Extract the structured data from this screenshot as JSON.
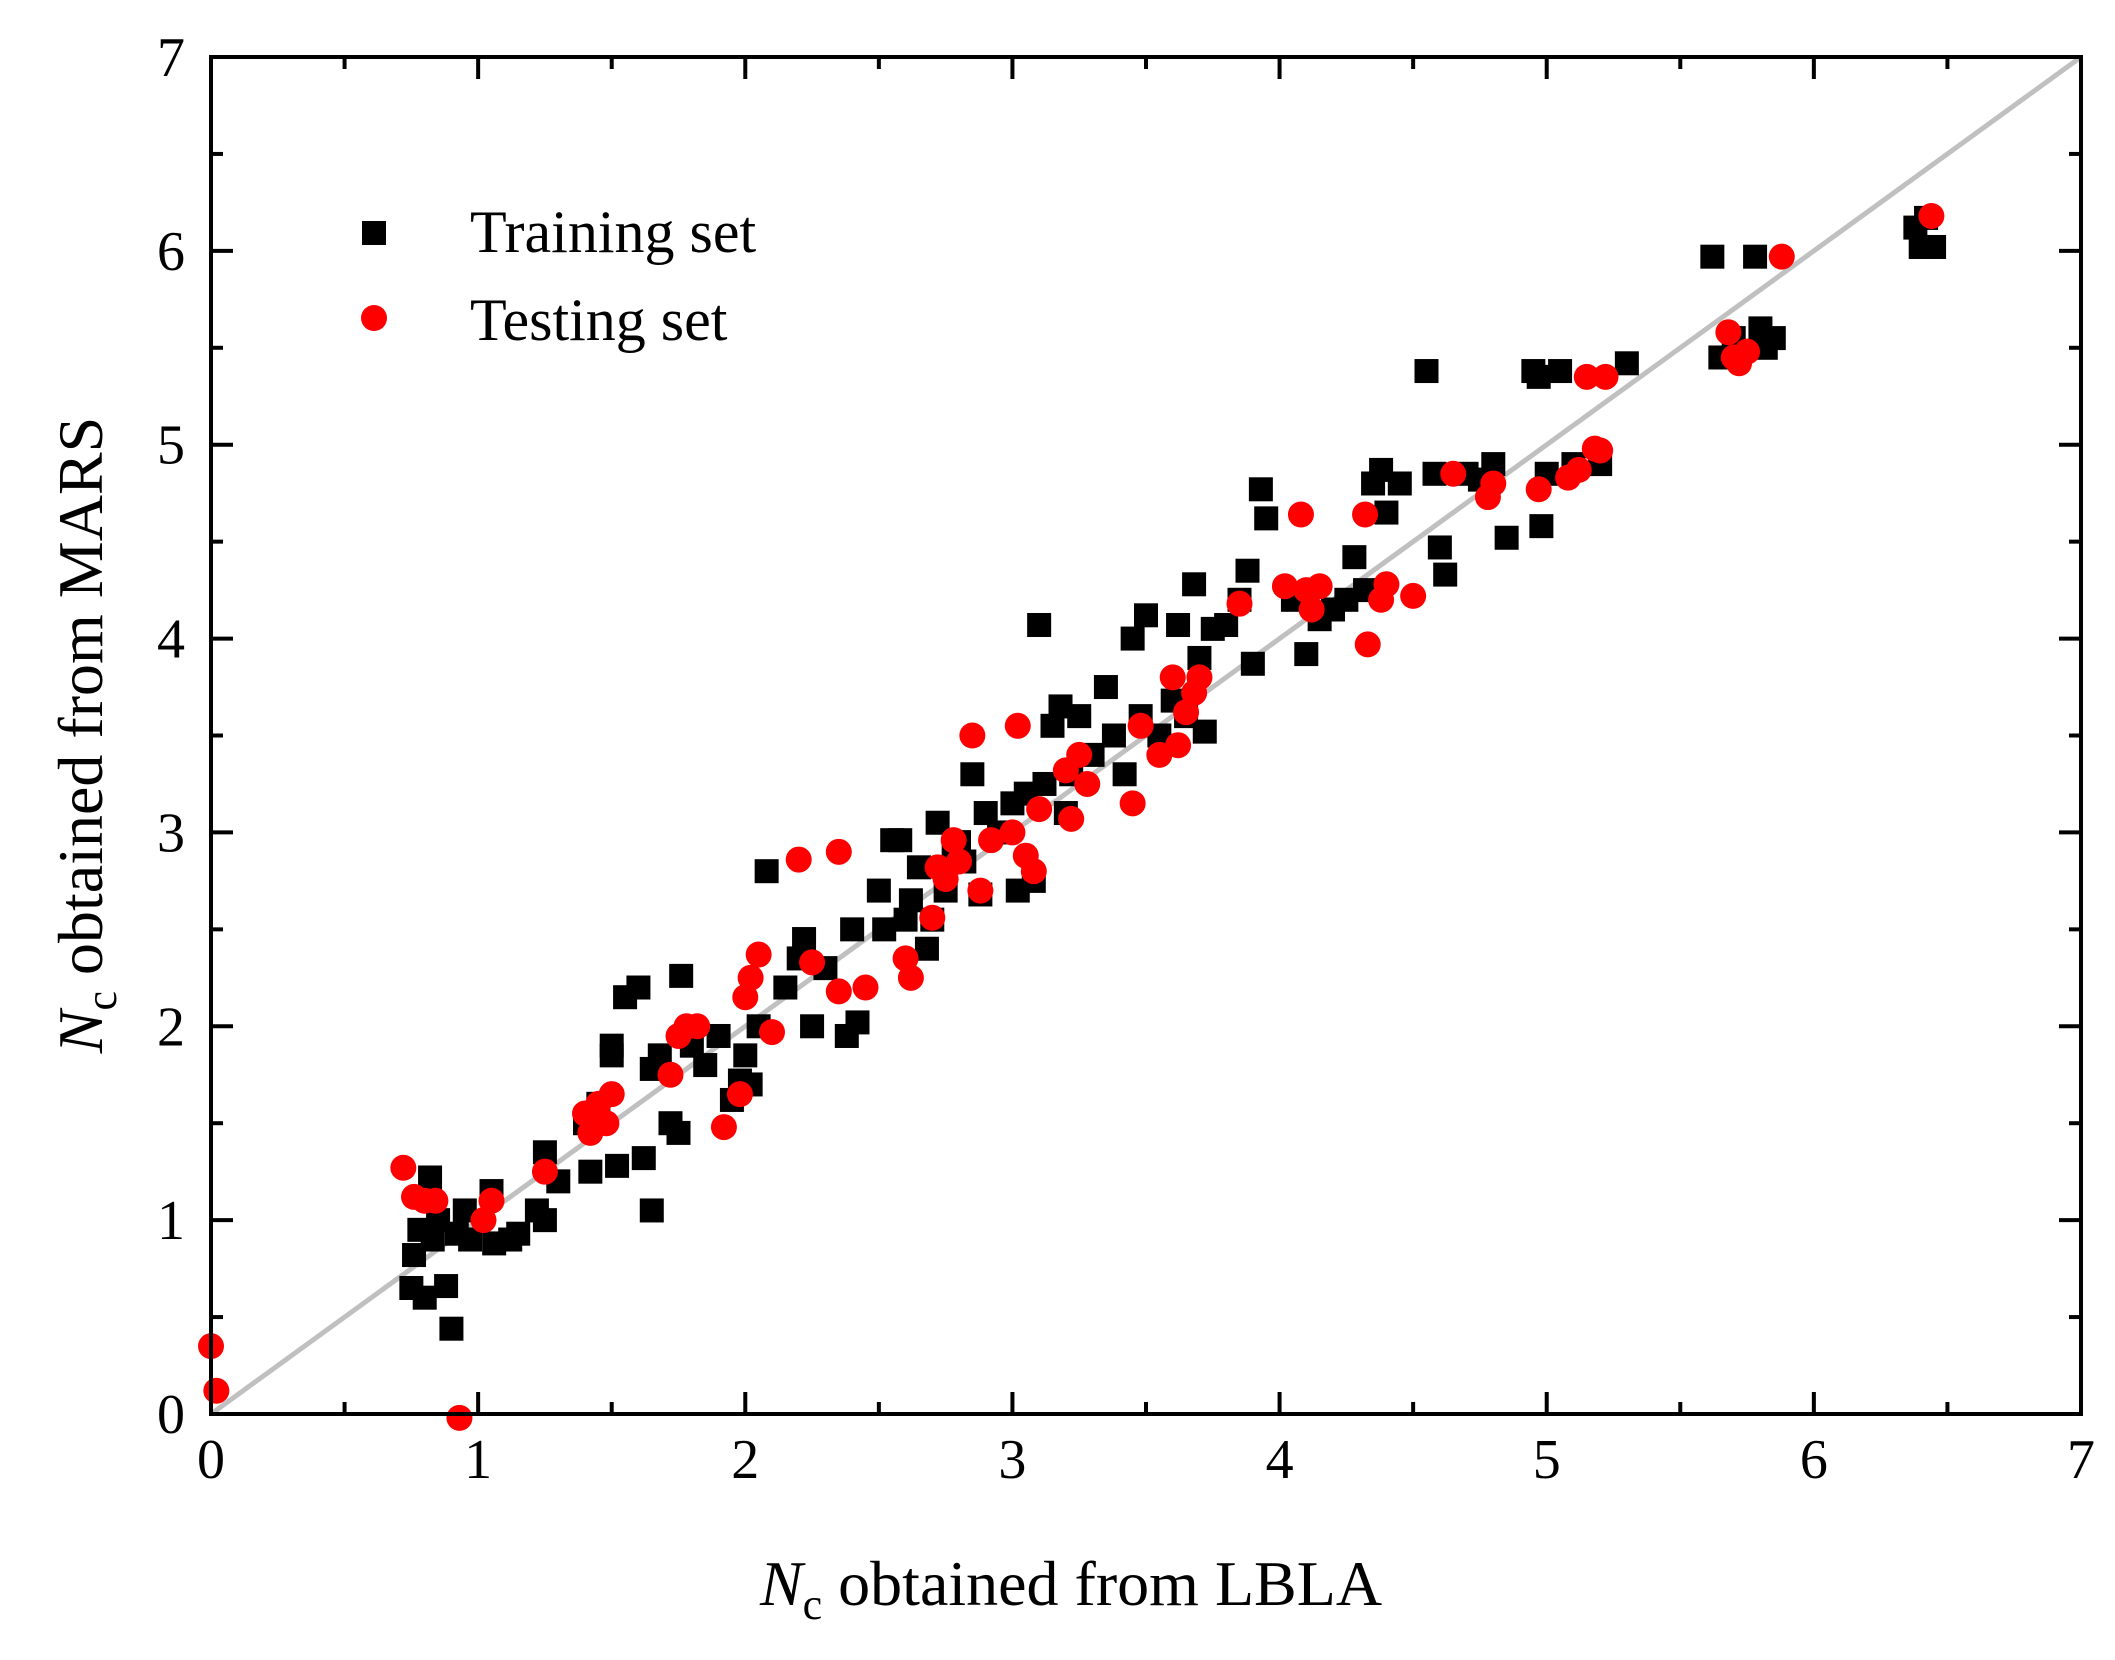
{
  "chart_data": {
    "type": "scatter",
    "xlabel": {
      "symbol": "N",
      "subscript": "c",
      "text": " obtained from LBLA"
    },
    "ylabel": {
      "symbol": "N",
      "subscript": "c",
      "text": " obtained from MARS"
    },
    "xlim": [
      0,
      7
    ],
    "ylim": [
      0,
      7
    ],
    "xticks": [
      0,
      1,
      2,
      3,
      4,
      5,
      6,
      7
    ],
    "yticks": [
      0,
      1,
      2,
      3,
      4,
      5,
      6,
      7
    ],
    "grid": false,
    "legend_position": "top-left",
    "reference_line": {
      "from": [
        0,
        0
      ],
      "to": [
        7,
        7
      ],
      "color": "#c0c0c0"
    },
    "colors": {
      "training": "#000000",
      "testing": "#ff0000",
      "reference": "#c0c0c0"
    },
    "series": [
      {
        "name": "Training set",
        "marker": "square",
        "color": "#000000",
        "points": [
          [
            0.75,
            0.65
          ],
          [
            0.76,
            0.82
          ],
          [
            0.78,
            0.95
          ],
          [
            0.8,
            0.6
          ],
          [
            0.82,
            1.22
          ],
          [
            0.83,
            0.9
          ],
          [
            0.85,
            1.0
          ],
          [
            0.88,
            0.66
          ],
          [
            0.9,
            0.44
          ],
          [
            0.92,
            0.93
          ],
          [
            0.95,
            1.05
          ],
          [
            0.97,
            0.9
          ],
          [
            1.05,
            1.15
          ],
          [
            1.06,
            0.88
          ],
          [
            1.12,
            0.9
          ],
          [
            1.15,
            0.93
          ],
          [
            1.22,
            1.05
          ],
          [
            1.25,
            1.0
          ],
          [
            1.25,
            1.35
          ],
          [
            1.3,
            1.2
          ],
          [
            1.4,
            1.5
          ],
          [
            1.42,
            1.25
          ],
          [
            1.45,
            1.6
          ],
          [
            1.5,
            1.85
          ],
          [
            1.5,
            1.9
          ],
          [
            1.52,
            1.28
          ],
          [
            1.55,
            2.15
          ],
          [
            1.6,
            2.2
          ],
          [
            1.62,
            1.32
          ],
          [
            1.65,
            1.78
          ],
          [
            1.65,
            1.05
          ],
          [
            1.68,
            1.85
          ],
          [
            1.72,
            1.5
          ],
          [
            1.75,
            1.45
          ],
          [
            1.76,
            2.26
          ],
          [
            1.8,
            1.9
          ],
          [
            1.85,
            1.8
          ],
          [
            1.9,
            1.95
          ],
          [
            1.95,
            1.62
          ],
          [
            1.98,
            1.72
          ],
          [
            2.0,
            1.85
          ],
          [
            2.02,
            1.7
          ],
          [
            2.05,
            2.0
          ],
          [
            2.08,
            2.8
          ],
          [
            2.15,
            2.2
          ],
          [
            2.2,
            2.35
          ],
          [
            2.22,
            2.45
          ],
          [
            2.25,
            2.0
          ],
          [
            2.3,
            2.3
          ],
          [
            2.38,
            1.95
          ],
          [
            2.4,
            2.5
          ],
          [
            2.42,
            2.02
          ],
          [
            2.5,
            2.7
          ],
          [
            2.52,
            2.5
          ],
          [
            2.55,
            2.96
          ],
          [
            2.58,
            2.96
          ],
          [
            2.6,
            2.55
          ],
          [
            2.62,
            2.65
          ],
          [
            2.65,
            2.82
          ],
          [
            2.68,
            2.4
          ],
          [
            2.7,
            2.55
          ],
          [
            2.72,
            3.05
          ],
          [
            2.75,
            2.7
          ],
          [
            2.78,
            2.9
          ],
          [
            2.8,
            2.95
          ],
          [
            2.82,
            2.85
          ],
          [
            2.85,
            3.3
          ],
          [
            2.88,
            2.68
          ],
          [
            2.9,
            3.1
          ],
          [
            2.95,
            3.0
          ],
          [
            3.0,
            3.15
          ],
          [
            3.02,
            2.7
          ],
          [
            3.05,
            3.2
          ],
          [
            3.08,
            2.75
          ],
          [
            3.1,
            4.07
          ],
          [
            3.12,
            3.25
          ],
          [
            3.15,
            3.55
          ],
          [
            3.18,
            3.65
          ],
          [
            3.2,
            3.1
          ],
          [
            3.22,
            3.3
          ],
          [
            3.25,
            3.6
          ],
          [
            3.3,
            3.4
          ],
          [
            3.35,
            3.75
          ],
          [
            3.38,
            3.5
          ],
          [
            3.42,
            3.3
          ],
          [
            3.45,
            4.0
          ],
          [
            3.48,
            3.6
          ],
          [
            3.5,
            4.12
          ],
          [
            3.55,
            3.5
          ],
          [
            3.6,
            3.68
          ],
          [
            3.62,
            4.07
          ],
          [
            3.65,
            3.6
          ],
          [
            3.68,
            4.28
          ],
          [
            3.7,
            3.9
          ],
          [
            3.72,
            3.52
          ],
          [
            3.75,
            4.05
          ],
          [
            3.8,
            4.07
          ],
          [
            3.85,
            4.2
          ],
          [
            3.88,
            4.35
          ],
          [
            3.9,
            3.87
          ],
          [
            3.93,
            4.77
          ],
          [
            3.95,
            4.62
          ],
          [
            4.05,
            4.2
          ],
          [
            4.1,
            3.92
          ],
          [
            4.15,
            4.1
          ],
          [
            4.2,
            4.15
          ],
          [
            4.25,
            4.2
          ],
          [
            4.28,
            4.42
          ],
          [
            4.32,
            4.25
          ],
          [
            4.35,
            4.8
          ],
          [
            4.38,
            4.87
          ],
          [
            4.4,
            4.65
          ],
          [
            4.45,
            4.8
          ],
          [
            4.55,
            5.38
          ],
          [
            4.58,
            4.85
          ],
          [
            4.6,
            4.47
          ],
          [
            4.62,
            4.33
          ],
          [
            4.7,
            4.85
          ],
          [
            4.75,
            4.82
          ],
          [
            4.8,
            4.9
          ],
          [
            4.85,
            4.52
          ],
          [
            4.95,
            5.38
          ],
          [
            4.97,
            5.35
          ],
          [
            4.98,
            4.58
          ],
          [
            5.0,
            4.85
          ],
          [
            5.05,
            5.38
          ],
          [
            5.1,
            4.9
          ],
          [
            5.2,
            4.9
          ],
          [
            5.3,
            5.42
          ],
          [
            5.62,
            5.97
          ],
          [
            5.65,
            5.45
          ],
          [
            5.7,
            5.55
          ],
          [
            5.78,
            5.97
          ],
          [
            5.8,
            5.6
          ],
          [
            5.82,
            5.5
          ],
          [
            5.85,
            5.55
          ],
          [
            6.38,
            6.12
          ],
          [
            6.4,
            6.02
          ],
          [
            6.42,
            6.17
          ],
          [
            6.45,
            6.02
          ]
        ]
      },
      {
        "name": "Testing set",
        "marker": "circle",
        "color": "#ff0000",
        "points": [
          [
            0.0,
            0.35
          ],
          [
            0.02,
            0.12
          ],
          [
            0.72,
            1.27
          ],
          [
            0.76,
            1.12
          ],
          [
            0.8,
            1.1
          ],
          [
            0.84,
            1.1
          ],
          [
            0.93,
            -0.02
          ],
          [
            1.02,
            1.0
          ],
          [
            1.05,
            1.1
          ],
          [
            1.25,
            1.25
          ],
          [
            1.4,
            1.55
          ],
          [
            1.42,
            1.45
          ],
          [
            1.45,
            1.6
          ],
          [
            1.48,
            1.5
          ],
          [
            1.5,
            1.65
          ],
          [
            1.72,
            1.75
          ],
          [
            1.75,
            1.95
          ],
          [
            1.78,
            2.0
          ],
          [
            1.82,
            2.0
          ],
          [
            1.92,
            1.48
          ],
          [
            1.98,
            1.65
          ],
          [
            2.0,
            2.15
          ],
          [
            2.02,
            2.25
          ],
          [
            2.05,
            2.37
          ],
          [
            2.1,
            1.97
          ],
          [
            2.2,
            2.86
          ],
          [
            2.25,
            2.33
          ],
          [
            2.35,
            2.9
          ],
          [
            2.35,
            2.18
          ],
          [
            2.45,
            2.2
          ],
          [
            2.6,
            2.35
          ],
          [
            2.62,
            2.25
          ],
          [
            2.7,
            2.56
          ],
          [
            2.72,
            2.82
          ],
          [
            2.75,
            2.76
          ],
          [
            2.78,
            2.96
          ],
          [
            2.8,
            2.85
          ],
          [
            2.85,
            3.5
          ],
          [
            2.88,
            2.7
          ],
          [
            2.92,
            2.96
          ],
          [
            3.0,
            3.0
          ],
          [
            3.02,
            3.55
          ],
          [
            3.05,
            2.88
          ],
          [
            3.08,
            2.8
          ],
          [
            3.1,
            3.12
          ],
          [
            3.2,
            3.32
          ],
          [
            3.22,
            3.07
          ],
          [
            3.25,
            3.4
          ],
          [
            3.28,
            3.25
          ],
          [
            3.45,
            3.15
          ],
          [
            3.48,
            3.55
          ],
          [
            3.55,
            3.4
          ],
          [
            3.6,
            3.8
          ],
          [
            3.62,
            3.45
          ],
          [
            3.65,
            3.62
          ],
          [
            3.68,
            3.72
          ],
          [
            3.7,
            3.8
          ],
          [
            3.85,
            4.18
          ],
          [
            4.02,
            4.27
          ],
          [
            4.08,
            4.64
          ],
          [
            4.1,
            4.25
          ],
          [
            4.12,
            4.15
          ],
          [
            4.15,
            4.27
          ],
          [
            4.32,
            4.64
          ],
          [
            4.33,
            3.97
          ],
          [
            4.38,
            4.2
          ],
          [
            4.4,
            4.28
          ],
          [
            4.5,
            4.22
          ],
          [
            4.65,
            4.85
          ],
          [
            4.78,
            4.73
          ],
          [
            4.8,
            4.8
          ],
          [
            4.97,
            4.77
          ],
          [
            5.08,
            4.83
          ],
          [
            5.12,
            4.87
          ],
          [
            5.15,
            5.35
          ],
          [
            5.18,
            4.98
          ],
          [
            5.2,
            4.97
          ],
          [
            5.22,
            5.35
          ],
          [
            5.68,
            5.58
          ],
          [
            5.7,
            5.45
          ],
          [
            5.72,
            5.42
          ],
          [
            5.75,
            5.48
          ],
          [
            5.88,
            5.97
          ],
          [
            6.44,
            6.18
          ]
        ]
      }
    ]
  }
}
